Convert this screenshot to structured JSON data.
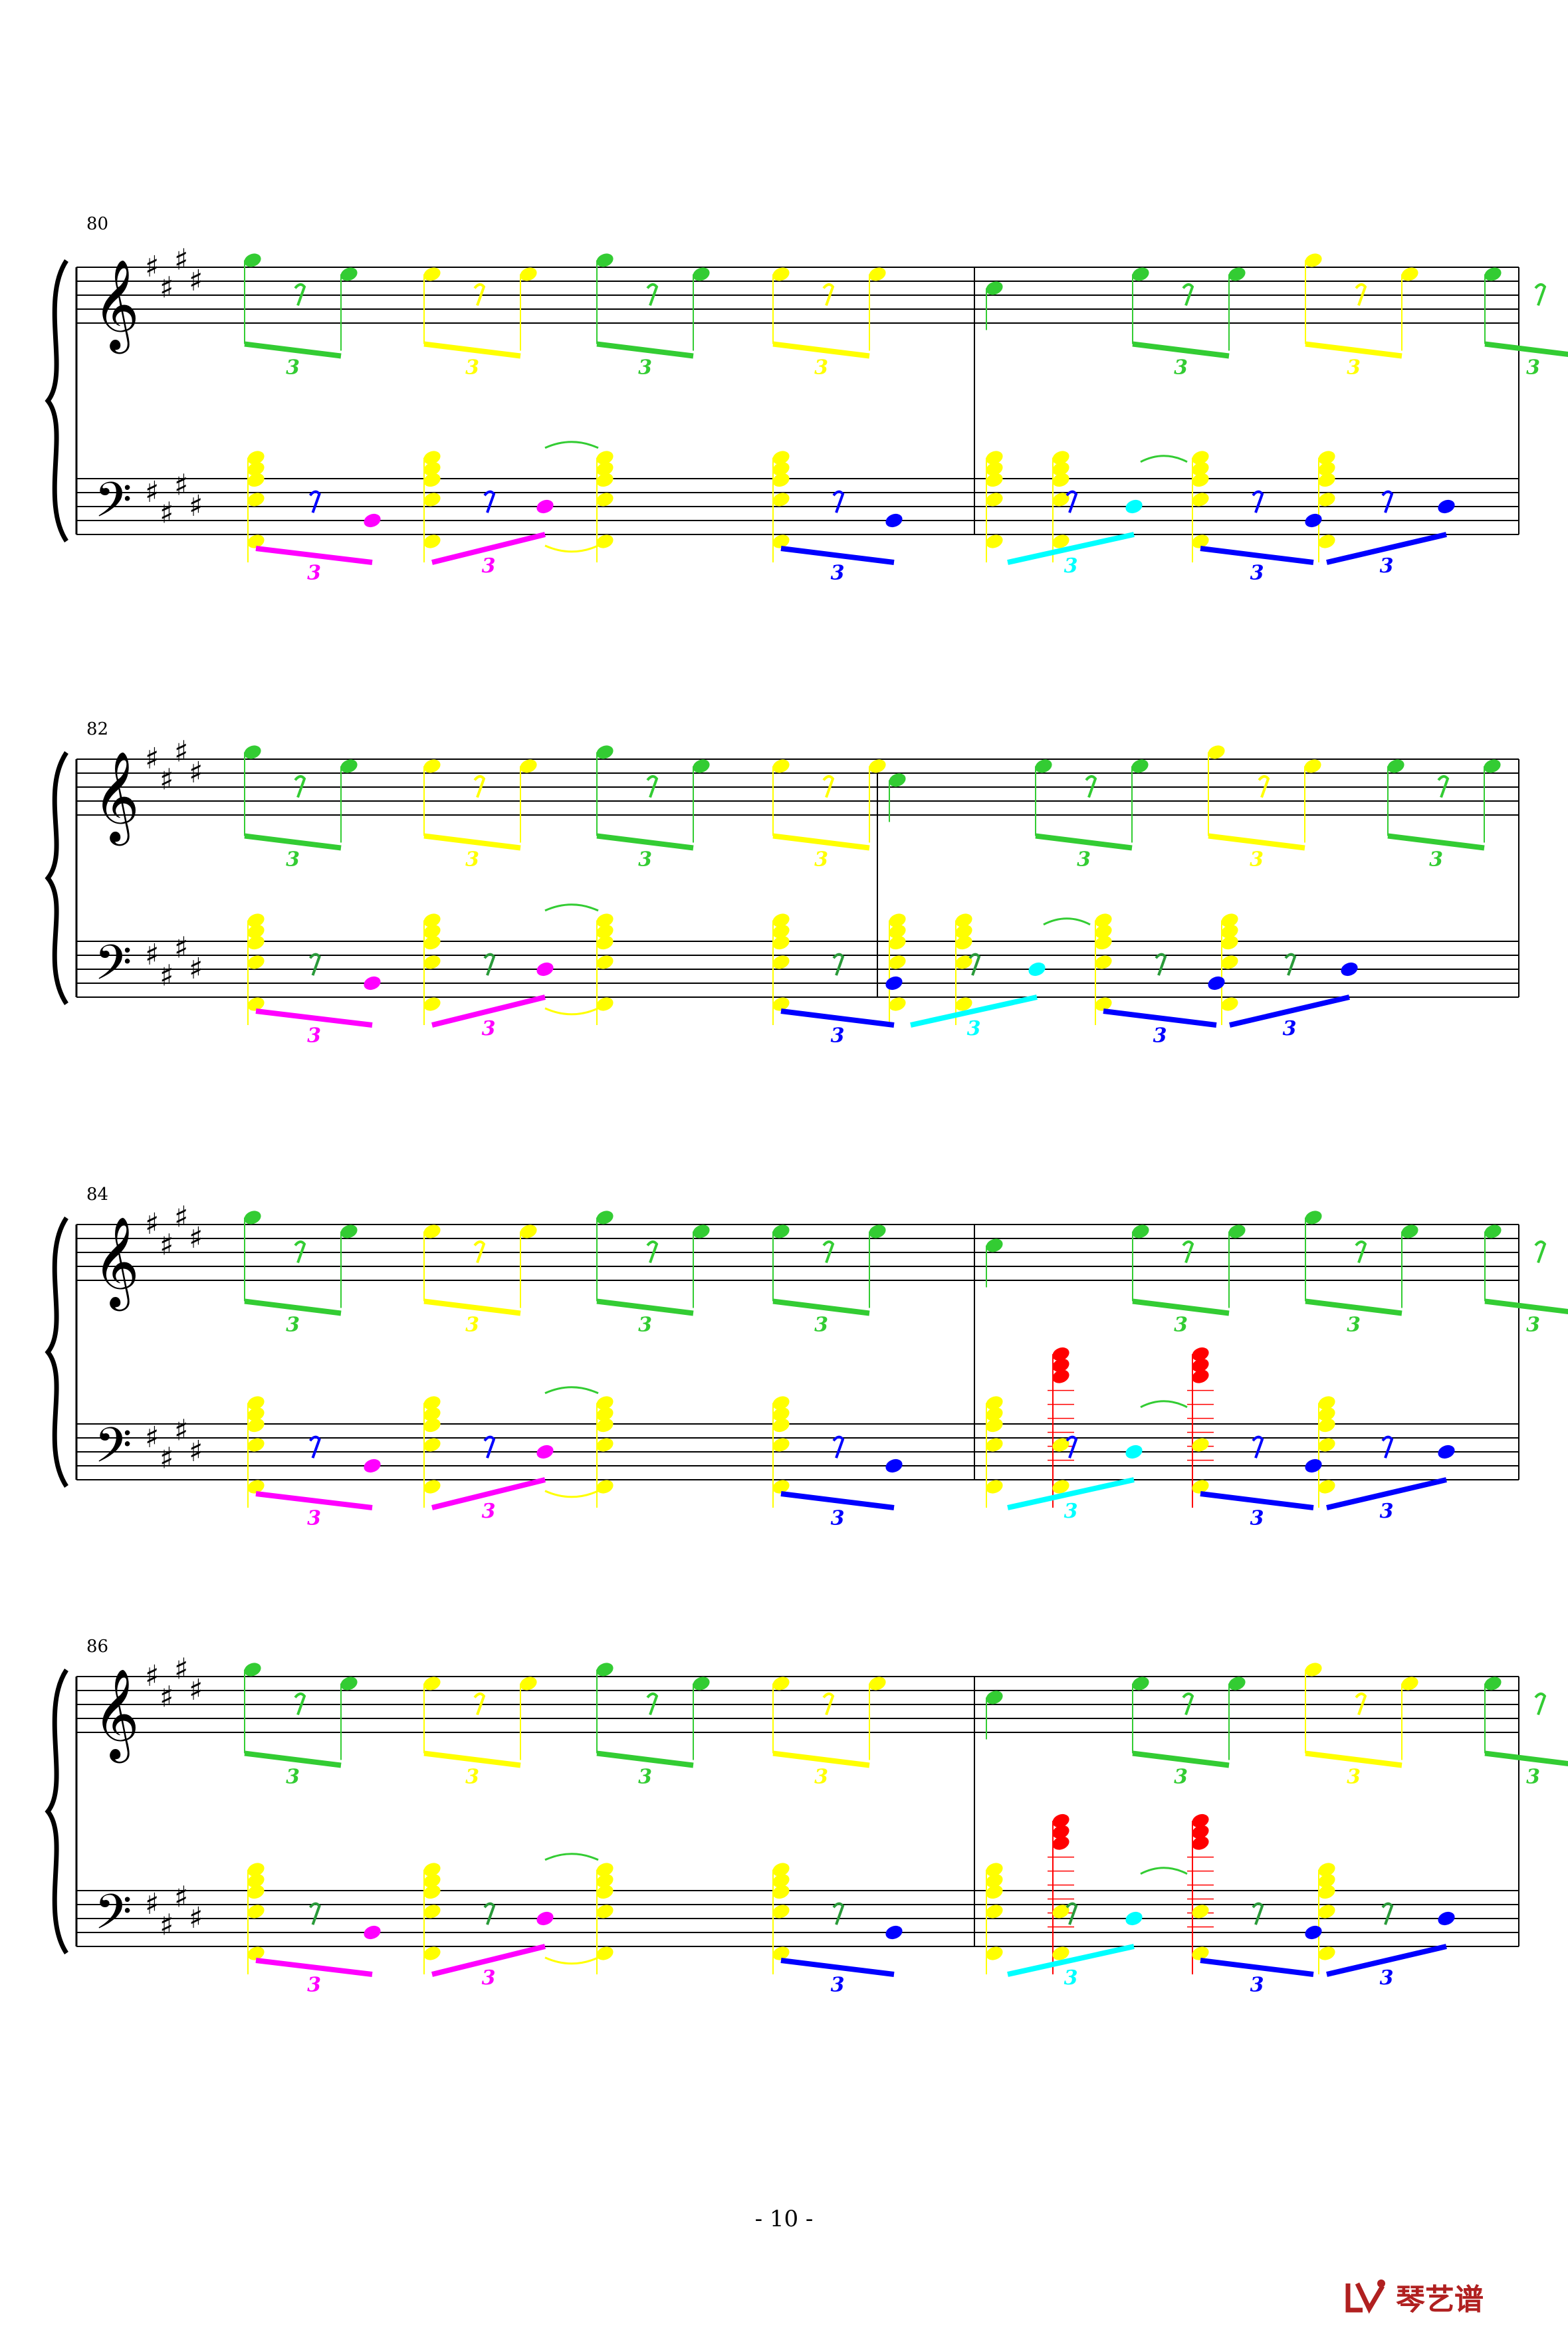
{
  "page": {
    "number_label": "- 10 -",
    "logo_text": "琴艺谱"
  },
  "key_signature": "E major",
  "systems": [
    {
      "measure_start": "80"
    },
    {
      "measure_start": "82"
    },
    {
      "measure_start": "84"
    },
    {
      "measure_start": "86"
    }
  ],
  "tuplet_label": "3",
  "colors": {
    "red": "#ff0000",
    "yellow": "#ffff00",
    "green": "#33cc33",
    "dark_green": "#2a9a3a",
    "magenta": "#ff00ff",
    "blue": "#0000ff",
    "cyan": "#00ffff",
    "olive": "#9a8a20",
    "bright_green": "#33ff33"
  }
}
